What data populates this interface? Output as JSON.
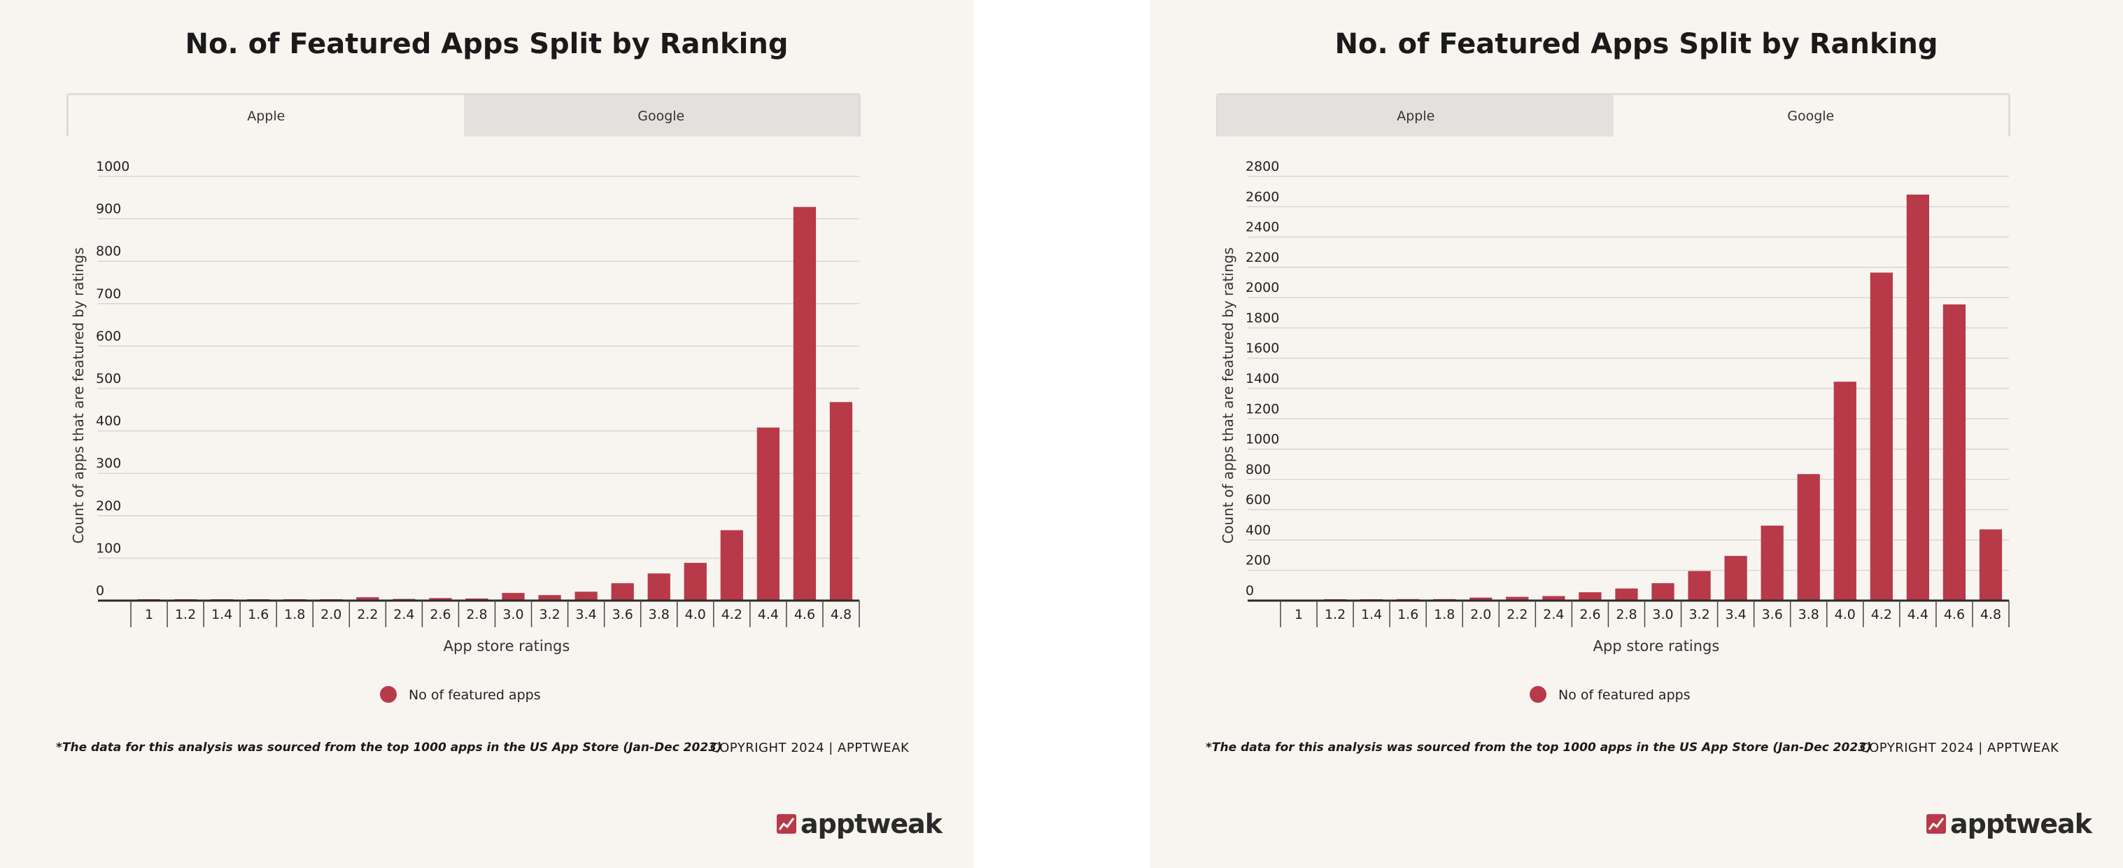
{
  "panels": [
    {
      "title": "No. of Featured Apps Split by Ranking",
      "tabs": [
        {
          "label": "Apple",
          "active": true
        },
        {
          "label": "Google",
          "active": false
        }
      ],
      "footnote": "*The data for this analysis was sourced from the top 1000 apps in the US App Store (Jan-Dec 2023)",
      "copyright": "COPYRIGHT 2024 | APPTWEAK",
      "logo_text": "apptweak"
    },
    {
      "title": "No. of Featured Apps Split by Ranking",
      "tabs": [
        {
          "label": "Apple",
          "active": false
        },
        {
          "label": "Google",
          "active": true
        }
      ],
      "footnote": "*The data for this analysis was sourced from the top 1000 apps in the US App Store (Jan-Dec 2023)",
      "copyright": "COPYRIGHT 2024 | APPTWEAK",
      "logo_text": "apptweak"
    }
  ],
  "colors": {
    "bar": "#b83a49",
    "background": "#f8f5f1",
    "grid": "#d9d6d1",
    "axis": "#2a2a2a"
  },
  "chart_data": [
    {
      "type": "bar",
      "title": "No. of Featured Apps Split by Ranking",
      "xlabel": "App store ratings",
      "ylabel": "Count of apps that are featured by ratings",
      "categories": [
        "1",
        "1.2",
        "1.4",
        "1.6",
        "1.8",
        "2.0",
        "2.2",
        "2.4",
        "2.6",
        "2.8",
        "3.0",
        "3.2",
        "3.4",
        "3.6",
        "3.8",
        "4.0",
        "4.2",
        "4.4",
        "4.6",
        "4.8"
      ],
      "series": [
        {
          "name": "No of featured apps",
          "values": [
            3,
            1,
            1,
            2,
            2,
            1,
            8,
            4,
            6,
            5,
            18,
            13,
            21,
            41,
            64,
            89,
            166,
            408,
            928,
            468
          ]
        }
      ],
      "ylim": [
        0,
        1000
      ],
      "yticks": [
        0,
        100,
        200,
        300,
        400,
        500,
        600,
        700,
        800,
        900,
        1000
      ],
      "legend": "bottom",
      "grid": true
    },
    {
      "type": "bar",
      "title": "No. of Featured Apps Split by Ranking",
      "xlabel": "App store ratings",
      "ylabel": "Count of apps that are featured by ratings",
      "categories": [
        "1",
        "1.2",
        "1.4",
        "1.6",
        "1.8",
        "2.0",
        "2.2",
        "2.4",
        "2.6",
        "2.8",
        "3.0",
        "3.2",
        "3.4",
        "3.6",
        "3.8",
        "4.0",
        "4.2",
        "4.4",
        "4.6",
        "4.8"
      ],
      "series": [
        {
          "name": "No of featured apps",
          "values": [
            0,
            5,
            5,
            10,
            10,
            20,
            25,
            30,
            55,
            80,
            115,
            195,
            295,
            495,
            835,
            1445,
            2165,
            2680,
            1955,
            470
          ]
        }
      ],
      "ylim": [
        0,
        2800
      ],
      "yticks": [
        0,
        200,
        400,
        600,
        800,
        1000,
        1200,
        1400,
        1600,
        1800,
        2000,
        2200,
        2400,
        2600,
        2800
      ],
      "legend": "bottom",
      "grid": true
    }
  ]
}
